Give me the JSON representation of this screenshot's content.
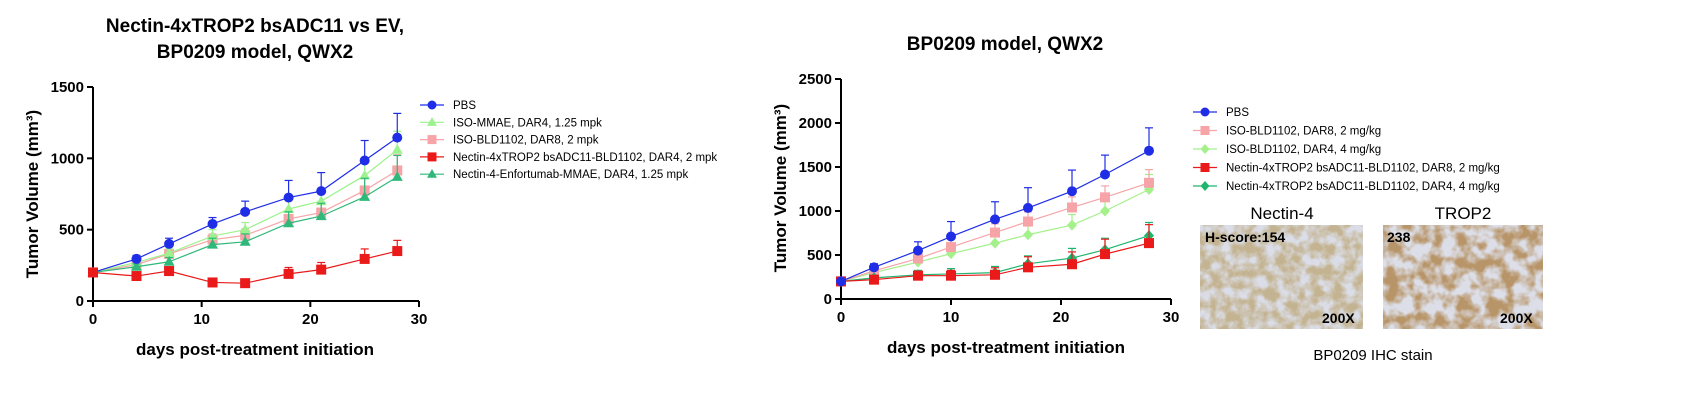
{
  "colors": {
    "PBS": "#1f2ee6",
    "ISO-MMAE": "#9cf28e",
    "ISO-BLD1102": "#f6a4a8",
    "bsADC-DAR4": "#ea1a1a",
    "Enfortumab": "#2fb87a",
    "ISO-BLD1102-DAR4": "#a4f08a",
    "bsADC-DAR4-green": "#1fb56e"
  },
  "chart_data": [
    {
      "type": "line",
      "title_lines": [
        "Nectin-4xTROP2 bsADC11 vs EV,",
        "BP0209 model, QWX2"
      ],
      "xlabel": "days post-treatment initiation",
      "ylabel": "Tumor Volume (mm³)",
      "xlim": [
        0,
        30
      ],
      "ylim": [
        0,
        1500
      ],
      "xticks": [
        0,
        10,
        20,
        30
      ],
      "yticks": [
        0,
        500,
        1000,
        1500
      ],
      "x": [
        0,
        4,
        7,
        11,
        14,
        18,
        21,
        25,
        28
      ],
      "legend_position": "right",
      "series": [
        {
          "name": "PBS",
          "marker": "circle",
          "color_key": "PBS",
          "values": [
            200,
            295,
            400,
            540,
            625,
            725,
            770,
            985,
            1145
          ],
          "errors": [
            15,
            25,
            40,
            45,
            75,
            120,
            130,
            140,
            170
          ]
        },
        {
          "name": "ISO-MMAE, DAR4, 1.25 mpk",
          "marker": "triangle",
          "color_key": "ISO-MMAE",
          "values": [
            200,
            270,
            335,
            455,
            500,
            645,
            700,
            880,
            1060
          ],
          "errors": [
            12,
            20,
            30,
            45,
            50,
            70,
            80,
            100,
            130
          ]
        },
        {
          "name": "ISO-BLD1102, DAR8, 2 mpk",
          "marker": "square",
          "color_key": "ISO-BLD1102",
          "values": [
            200,
            255,
            330,
            430,
            460,
            575,
            620,
            775,
            915
          ],
          "errors": [
            12,
            20,
            30,
            40,
            45,
            60,
            70,
            90,
            110
          ]
        },
        {
          "name": "Nectin-4xTROP2 bsADC11-BLD1102, DAR4, 2 mpk",
          "marker": "square",
          "color_key": "bsADC-DAR4",
          "values": [
            200,
            175,
            210,
            130,
            125,
            190,
            220,
            295,
            350
          ],
          "errors": [
            10,
            20,
            30,
            25,
            20,
            45,
            50,
            70,
            75
          ]
        },
        {
          "name": "Nectin-4-Enfortumab-MMAE, DAR4, 1.25 mpk",
          "marker": "triangle",
          "color_key": "Enfortumab",
          "values": [
            200,
            240,
            275,
            395,
            415,
            545,
            595,
            730,
            870
          ],
          "errors": [
            12,
            20,
            30,
            45,
            55,
            80,
            90,
            130,
            150
          ]
        }
      ]
    },
    {
      "type": "line",
      "title_lines": [
        "BP0209 model, QWX2"
      ],
      "xlabel": "days post-treatment initiation",
      "ylabel": "Tumor Volume (mm³)",
      "xlim": [
        0,
        30
      ],
      "ylim": [
        0,
        2500
      ],
      "xticks": [
        0,
        10,
        20,
        30
      ],
      "yticks": [
        0,
        500,
        1000,
        1500,
        2000,
        2500
      ],
      "x": [
        0,
        3,
        7,
        10,
        14,
        17,
        21,
        24,
        28
      ],
      "legend_position": "right",
      "series": [
        {
          "name": "PBS",
          "marker": "circle",
          "color_key": "PBS",
          "values": [
            200,
            360,
            550,
            710,
            905,
            1035,
            1225,
            1415,
            1685
          ],
          "errors": [
            20,
            40,
            100,
            170,
            200,
            230,
            240,
            220,
            260
          ]
        },
        {
          "name": "ISO-BLD1102, DAR8, 2 mg/kg",
          "marker": "square",
          "color_key": "ISO-BLD1102",
          "values": [
            200,
            320,
            460,
            590,
            755,
            880,
            1040,
            1155,
            1320
          ],
          "errors": [
            15,
            30,
            60,
            90,
            100,
            110,
            120,
            130,
            150
          ]
        },
        {
          "name": "ISO-BLD1102, DAR4, 4 mg/kg",
          "marker": "diamond",
          "color_key": "ISO-BLD1102-DAR4",
          "values": [
            200,
            300,
            420,
            515,
            635,
            730,
            840,
            1000,
            1245
          ],
          "errors": [
            15,
            30,
            50,
            70,
            80,
            100,
            120,
            140,
            170
          ]
        },
        {
          "name": "Nectin-4xTROP2 bsADC11-BLD1102, DAR8, 2 mg/kg",
          "marker": "square",
          "color_key": "bsADC-DAR4",
          "values": [
            200,
            220,
            265,
            265,
            275,
            360,
            395,
            510,
            635
          ],
          "errors": [
            15,
            30,
            50,
            60,
            80,
            120,
            140,
            170,
            210
          ]
        },
        {
          "name": "Nectin-4xTROP2 bsADC11-BLD1102, DAR4, 4 mg/kg",
          "marker": "diamond",
          "color_key": "bsADC-DAR4-green",
          "values": [
            200,
            240,
            275,
            285,
            300,
            400,
            465,
            560,
            720
          ],
          "errors": [
            15,
            30,
            50,
            60,
            70,
            90,
            110,
            130,
            150
          ]
        }
      ]
    }
  ],
  "ihc": {
    "panel1_title": "Nectin-4",
    "panel1_score": "H-score:154",
    "panel1_mag": "200X",
    "panel2_title": "TROP2",
    "panel2_score": "238",
    "panel2_mag": "200X",
    "caption": "BP0209 IHC stain"
  }
}
